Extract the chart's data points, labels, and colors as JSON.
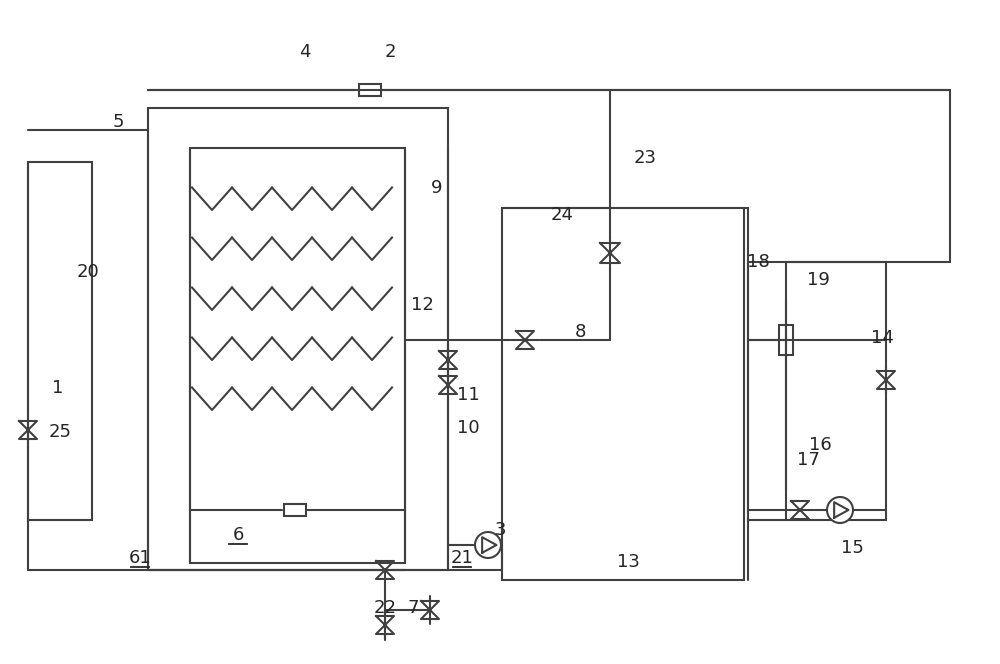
{
  "bg": "#ffffff",
  "lc": "#404040",
  "lw": 1.5,
  "fs": 13,
  "labels": [
    [
      "1",
      58,
      388,
      false
    ],
    [
      "2",
      390,
      52,
      false
    ],
    [
      "3",
      500,
      530,
      false
    ],
    [
      "4",
      305,
      52,
      false
    ],
    [
      "5",
      118,
      122,
      false
    ],
    [
      "6",
      238,
      535,
      true
    ],
    [
      "61",
      140,
      558,
      true
    ],
    [
      "7",
      413,
      608,
      false
    ],
    [
      "8",
      580,
      332,
      false
    ],
    [
      "9",
      437,
      188,
      false
    ],
    [
      "10",
      468,
      428,
      false
    ],
    [
      "11",
      468,
      395,
      false
    ],
    [
      "12",
      422,
      305,
      false
    ],
    [
      "13",
      628,
      562,
      false
    ],
    [
      "14",
      882,
      338,
      false
    ],
    [
      "15",
      852,
      548,
      false
    ],
    [
      "16",
      820,
      445,
      false
    ],
    [
      "17",
      808,
      460,
      false
    ],
    [
      "18",
      758,
      262,
      false
    ],
    [
      "19",
      818,
      280,
      false
    ],
    [
      "20",
      88,
      272,
      false
    ],
    [
      "21",
      462,
      558,
      true
    ],
    [
      "22",
      385,
      608,
      false
    ],
    [
      "23",
      645,
      158,
      false
    ],
    [
      "24",
      562,
      215,
      false
    ],
    [
      "25",
      60,
      432,
      false
    ]
  ]
}
